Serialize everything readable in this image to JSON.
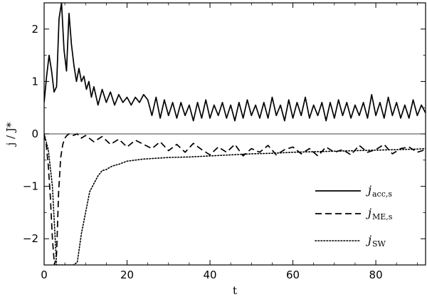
{
  "chart_data": {
    "type": "line",
    "title": "",
    "xlabel": "t",
    "ylabel": "j / J*",
    "xlim": [
      0,
      92
    ],
    "ylim": [
      -2.5,
      2.5
    ],
    "x_ticks": [
      0,
      20,
      40,
      60,
      80
    ],
    "y_ticks": [
      -2,
      -1,
      0,
      1,
      2
    ],
    "x_tick_labels": [
      "0",
      "20",
      "40",
      "60",
      "80"
    ],
    "y_tick_labels": [
      "−2",
      "−1",
      "0",
      "1",
      "2"
    ],
    "zero_line": true,
    "grid": false,
    "legend_position": "bottom-right",
    "legend": [
      {
        "symbol": "j",
        "sub": "acc,s"
      },
      {
        "symbol": "j",
        "sub": "ME,s"
      },
      {
        "symbol": "j",
        "sub": "SW"
      }
    ],
    "series": [
      {
        "name": "j_acc,s",
        "style": "solid",
        "x": [
          0,
          0.6,
          1.2,
          1.8,
          2.4,
          3.0,
          3.6,
          4.2,
          4.8,
          5.4,
          6.0,
          6.6,
          7.2,
          7.8,
          8.4,
          9.0,
          9.6,
          10.2,
          10.8,
          11.4,
          12.0,
          13.0,
          14.0,
          15.0,
          16.0,
          17.0,
          18.0,
          19.0,
          20.0,
          21.0,
          22.0,
          23.0,
          24.0,
          25.0,
          26.0,
          27.0,
          28.0,
          29.0,
          30.0,
          31.0,
          32.0,
          33.0,
          34.0,
          35.0,
          36.0,
          37.0,
          38.0,
          39.0,
          40.0,
          41.0,
          42.0,
          43.0,
          44.0,
          45.0,
          46.0,
          47.0,
          48.0,
          49.0,
          50.0,
          51.0,
          52.0,
          53.0,
          54.0,
          55.0,
          56.0,
          57.0,
          58.0,
          59.0,
          60.0,
          61.0,
          62.0,
          63.0,
          64.0,
          65.0,
          66.0,
          67.0,
          68.0,
          69.0,
          70.0,
          71.0,
          72.0,
          73.0,
          74.0,
          75.0,
          76.0,
          77.0,
          78.0,
          79.0,
          80.0,
          81.0,
          82.0,
          83.0,
          84.0,
          85.0,
          86.0,
          87.0,
          88.0,
          89.0,
          90.0,
          91.0,
          92.0
        ],
        "y": [
          0.6,
          1.1,
          1.5,
          1.2,
          0.8,
          0.9,
          2.2,
          2.5,
          1.6,
          1.2,
          2.3,
          1.7,
          1.3,
          1.0,
          1.25,
          1.0,
          1.1,
          0.85,
          1.0,
          0.7,
          0.9,
          0.55,
          0.85,
          0.6,
          0.8,
          0.55,
          0.75,
          0.6,
          0.7,
          0.55,
          0.7,
          0.6,
          0.75,
          0.65,
          0.35,
          0.7,
          0.3,
          0.65,
          0.35,
          0.6,
          0.3,
          0.6,
          0.35,
          0.55,
          0.25,
          0.6,
          0.3,
          0.65,
          0.3,
          0.55,
          0.35,
          0.6,
          0.3,
          0.55,
          0.25,
          0.6,
          0.3,
          0.65,
          0.35,
          0.55,
          0.3,
          0.6,
          0.3,
          0.7,
          0.35,
          0.55,
          0.25,
          0.65,
          0.3,
          0.6,
          0.35,
          0.7,
          0.3,
          0.55,
          0.35,
          0.6,
          0.25,
          0.6,
          0.3,
          0.65,
          0.35,
          0.6,
          0.3,
          0.55,
          0.35,
          0.6,
          0.3,
          0.75,
          0.35,
          0.6,
          0.3,
          0.7,
          0.35,
          0.6,
          0.3,
          0.55,
          0.3,
          0.65,
          0.35,
          0.55,
          0.4
        ]
      },
      {
        "name": "j_ME,s",
        "style": "dashed",
        "x": [
          0,
          0.5,
          1.0,
          1.5,
          2.0,
          2.5,
          3.0,
          3.5,
          4.0,
          4.5,
          5.0,
          5.5,
          6.0,
          7.0,
          8.0,
          9.0,
          10.0,
          12.0,
          14.0,
          16.0,
          18.0,
          20.0,
          22.0,
          24.0,
          26.0,
          28.0,
          30.0,
          32.0,
          34.0,
          36.0,
          38.0,
          40.0,
          42.0,
          44.0,
          46.0,
          48.0,
          50.0,
          52.0,
          54.0,
          56.0,
          58.0,
          60.0,
          62.0,
          64.0,
          66.0,
          68.0,
          70.0,
          72.0,
          74.0,
          76.0,
          78.0,
          80.0,
          82.0,
          84.0,
          86.0,
          88.0,
          90.0,
          92.0
        ],
        "y": [
          0,
          -0.2,
          -0.6,
          -1.2,
          -2.0,
          -2.5,
          -2.3,
          -1.1,
          -0.45,
          -0.2,
          -0.08,
          -0.03,
          0,
          -0.03,
          0,
          -0.08,
          -0.03,
          -0.15,
          -0.05,
          -0.2,
          -0.1,
          -0.25,
          -0.12,
          -0.2,
          -0.28,
          -0.15,
          -0.32,
          -0.2,
          -0.35,
          -0.18,
          -0.3,
          -0.4,
          -0.25,
          -0.35,
          -0.2,
          -0.42,
          -0.28,
          -0.35,
          -0.22,
          -0.4,
          -0.3,
          -0.25,
          -0.38,
          -0.28,
          -0.42,
          -0.25,
          -0.35,
          -0.3,
          -0.4,
          -0.22,
          -0.35,
          -0.3,
          -0.2,
          -0.38,
          -0.28,
          -0.25,
          -0.35,
          -0.3
        ]
      },
      {
        "name": "j_SW",
        "style": "dotted",
        "x": [
          0,
          1.0,
          2.0,
          3.0,
          4.0,
          5.0,
          6.0,
          7.0,
          8.0,
          9.0,
          10.0,
          11.0,
          12.0,
          13.0,
          14.0,
          15.0,
          16.0,
          17.0,
          18.0,
          20.0,
          22.0,
          24.0,
          26.0,
          28.0,
          30.0,
          35.0,
          40.0,
          45.0,
          50.0,
          55.0,
          60.0,
          65.0,
          70.0,
          75.0,
          80.0,
          85.0,
          90.0,
          92.0
        ],
        "y": [
          0,
          -0.3,
          -1.0,
          -2.5,
          -2.5,
          -2.5,
          -2.5,
          -2.5,
          -2.45,
          -1.9,
          -1.5,
          -1.1,
          -0.95,
          -0.8,
          -0.7,
          -0.68,
          -0.63,
          -0.6,
          -0.58,
          -0.52,
          -0.5,
          -0.48,
          -0.47,
          -0.46,
          -0.45,
          -0.44,
          -0.42,
          -0.4,
          -0.38,
          -0.37,
          -0.35,
          -0.34,
          -0.33,
          -0.32,
          -0.31,
          -0.3,
          -0.29,
          -0.28
        ]
      }
    ]
  }
}
